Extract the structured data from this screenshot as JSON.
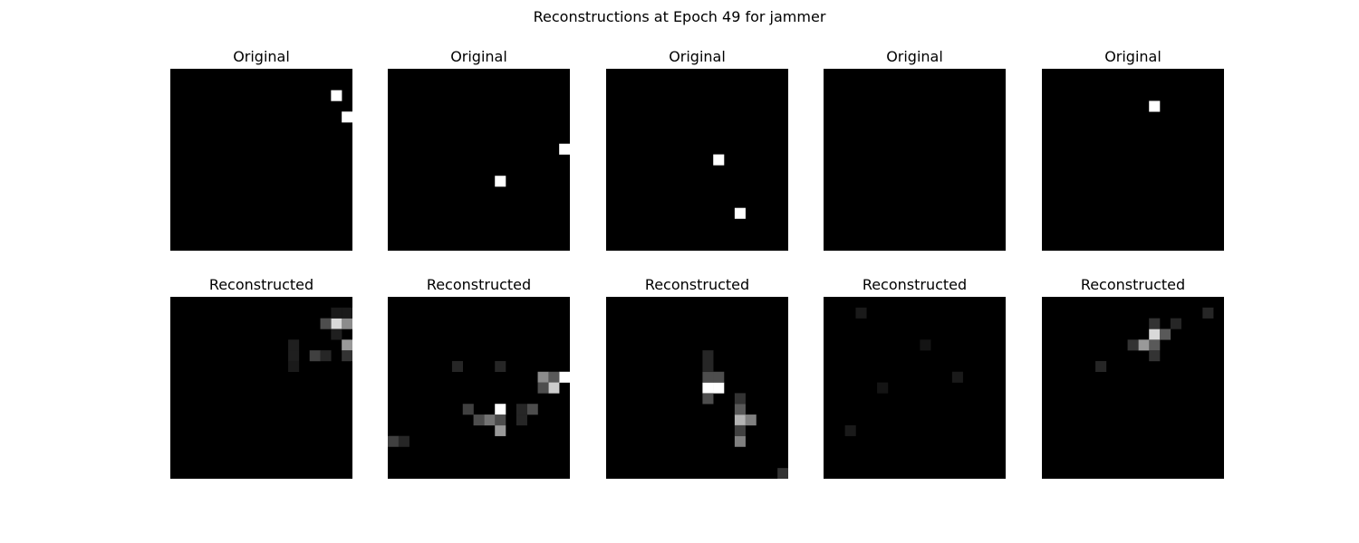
{
  "chart_data": {
    "type": "heatmap",
    "title": "Reconstructions at Epoch 49 for jammer",
    "grid_size": 17,
    "colormap": "gray",
    "value_range": [
      0,
      1
    ],
    "rows": [
      {
        "label": "Original",
        "panels": [
          {
            "title": "Original",
            "hot_pixels": [
              {
                "row": 2,
                "col": 15,
                "v": 1.0
              },
              {
                "row": 4,
                "col": 16,
                "v": 1.0
              }
            ]
          },
          {
            "title": "Original",
            "hot_pixels": [
              {
                "row": 7,
                "col": 16,
                "v": 1.0
              },
              {
                "row": 10,
                "col": 10,
                "v": 1.0
              }
            ]
          },
          {
            "title": "Original",
            "hot_pixels": [
              {
                "row": 8,
                "col": 10,
                "v": 1.0
              },
              {
                "row": 13,
                "col": 12,
                "v": 1.0
              }
            ]
          },
          {
            "title": "Original",
            "hot_pixels": []
          },
          {
            "title": "Original",
            "hot_pixels": [
              {
                "row": 3,
                "col": 10,
                "v": 1.0
              }
            ]
          }
        ]
      },
      {
        "label": "Reconstructed",
        "panels": [
          {
            "title": "Reconstructed",
            "hot_pixels": [
              {
                "row": 2,
                "col": 15,
                "v": 0.85
              },
              {
                "row": 2,
                "col": 16,
                "v": 0.55
              },
              {
                "row": 2,
                "col": 14,
                "v": 0.3
              },
              {
                "row": 4,
                "col": 16,
                "v": 0.6
              },
              {
                "row": 5,
                "col": 13,
                "v": 0.25
              },
              {
                "row": 5,
                "col": 14,
                "v": 0.15
              },
              {
                "row": 5,
                "col": 16,
                "v": 0.2
              },
              {
                "row": 4,
                "col": 11,
                "v": 0.12
              },
              {
                "row": 5,
                "col": 11,
                "v": 0.12
              },
              {
                "row": 6,
                "col": 11,
                "v": 0.1
              },
              {
                "row": 1,
                "col": 15,
                "v": 0.1
              },
              {
                "row": 1,
                "col": 16,
                "v": 0.1
              },
              {
                "row": 3,
                "col": 15,
                "v": 0.12
              }
            ]
          },
          {
            "title": "Reconstructed",
            "hot_pixels": [
              {
                "row": 10,
                "col": 10,
                "v": 1.0
              },
              {
                "row": 11,
                "col": 9,
                "v": 0.45
              },
              {
                "row": 11,
                "col": 8,
                "v": 0.3
              },
              {
                "row": 10,
                "col": 7,
                "v": 0.25
              },
              {
                "row": 12,
                "col": 10,
                "v": 0.6
              },
              {
                "row": 11,
                "col": 10,
                "v": 0.3
              },
              {
                "row": 10,
                "col": 13,
                "v": 0.3
              },
              {
                "row": 7,
                "col": 16,
                "v": 1.0
              },
              {
                "row": 7,
                "col": 14,
                "v": 0.55
              },
              {
                "row": 7,
                "col": 15,
                "v": 0.35
              },
              {
                "row": 8,
                "col": 15,
                "v": 0.8
              },
              {
                "row": 8,
                "col": 14,
                "v": 0.3
              },
              {
                "row": 6,
                "col": 10,
                "v": 0.15
              },
              {
                "row": 13,
                "col": 0,
                "v": 0.25
              },
              {
                "row": 13,
                "col": 1,
                "v": 0.15
              },
              {
                "row": 10,
                "col": 12,
                "v": 0.15
              },
              {
                "row": 11,
                "col": 12,
                "v": 0.15
              },
              {
                "row": 6,
                "col": 6,
                "v": 0.15
              }
            ]
          },
          {
            "title": "Reconstructed",
            "hot_pixels": [
              {
                "row": 8,
                "col": 9,
                "v": 1.0
              },
              {
                "row": 8,
                "col": 10,
                "v": 1.0
              },
              {
                "row": 7,
                "col": 9,
                "v": 0.3
              },
              {
                "row": 7,
                "col": 10,
                "v": 0.3
              },
              {
                "row": 9,
                "col": 9,
                "v": 0.3
              },
              {
                "row": 6,
                "col": 9,
                "v": 0.15
              },
              {
                "row": 11,
                "col": 12,
                "v": 0.7
              },
              {
                "row": 11,
                "col": 13,
                "v": 0.5
              },
              {
                "row": 13,
                "col": 12,
                "v": 0.5
              },
              {
                "row": 10,
                "col": 12,
                "v": 0.35
              },
              {
                "row": 12,
                "col": 12,
                "v": 0.25
              },
              {
                "row": 9,
                "col": 12,
                "v": 0.2
              },
              {
                "row": 5,
                "col": 9,
                "v": 0.15
              },
              {
                "row": 16,
                "col": 16,
                "v": 0.2
              }
            ]
          },
          {
            "title": "Reconstructed",
            "hot_pixels": [
              {
                "row": 1,
                "col": 3,
                "v": 0.1
              },
              {
                "row": 7,
                "col": 12,
                "v": 0.1
              },
              {
                "row": 12,
                "col": 2,
                "v": 0.1
              },
              {
                "row": 8,
                "col": 5,
                "v": 0.08
              },
              {
                "row": 4,
                "col": 9,
                "v": 0.08
              }
            ]
          },
          {
            "title": "Reconstructed",
            "hot_pixels": [
              {
                "row": 3,
                "col": 10,
                "v": 0.85
              },
              {
                "row": 4,
                "col": 9,
                "v": 0.6
              },
              {
                "row": 4,
                "col": 10,
                "v": 0.35
              },
              {
                "row": 3,
                "col": 11,
                "v": 0.35
              },
              {
                "row": 2,
                "col": 10,
                "v": 0.2
              },
              {
                "row": 4,
                "col": 8,
                "v": 0.2
              },
              {
                "row": 5,
                "col": 10,
                "v": 0.2
              },
              {
                "row": 1,
                "col": 15,
                "v": 0.15
              },
              {
                "row": 2,
                "col": 12,
                "v": 0.15
              },
              {
                "row": 6,
                "col": 5,
                "v": 0.15
              }
            ]
          }
        ]
      }
    ]
  }
}
